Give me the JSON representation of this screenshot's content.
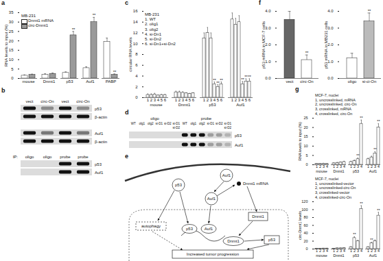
{
  "panel_labels": [
    "a",
    "b",
    "c",
    "d",
    "e",
    "f",
    "g"
  ],
  "chart_data": [
    {
      "type": "bar",
      "title": "MB-231",
      "ylabel": "RNA levels to input (%)",
      "categories": [
        "mouse",
        "Dnmt1",
        "p53",
        "Auf1",
        "PABP"
      ],
      "series": [
        {
          "name": "Dnmt1 mRNA",
          "color": "#ffffff",
          "values": [
            1.5,
            2,
            3,
            5.5,
            19.5
          ],
          "errors": [
            0.4,
            0.5,
            0.5,
            0.7,
            2
          ]
        },
        {
          "name": "circ-Dnmt1",
          "color": "#9a9a9a",
          "values": [
            2,
            2.5,
            23,
            30,
            2
          ],
          "errors": [
            0.3,
            0.4,
            2,
            2.5,
            0.4
          ],
          "significance": [
            null,
            null,
            "**",
            "**",
            "**"
          ]
        }
      ],
      "ylim": [
        0,
        35
      ],
      "yticks": [
        0,
        5,
        10,
        15,
        20,
        25,
        30,
        35
      ],
      "legend": "top-left"
    },
    {
      "type": "bar",
      "title": "MB-231",
      "ylabel": "circular RNA levels",
      "categories": [
        "mouse",
        "Dnmt1",
        "p53",
        "Auf1"
      ],
      "bar_labels": [
        "1",
        "2",
        "3",
        "4",
        "5",
        "6"
      ],
      "series": [
        {
          "name": "1. WT",
          "color": "#ffffff",
          "values": [
            0.5,
            1,
            11,
            14.5
          ],
          "errors": [
            0.2,
            0.2,
            1,
            1.2
          ]
        },
        {
          "name": "2. olig1",
          "color": "#ffffff",
          "values": [
            0.5,
            1,
            12,
            13.5
          ],
          "errors": [
            0.2,
            0.2,
            1,
            1.2
          ]
        },
        {
          "name": "3. olig2",
          "color": "#ffffff",
          "values": [
            0.6,
            0.9,
            11,
            14
          ],
          "errors": [
            0.2,
            0.2,
            1,
            1.2
          ]
        },
        {
          "name": "4. si-Dn1",
          "color": "#ffffff",
          "values": [
            0.4,
            0.8,
            2.5,
            2.5
          ],
          "errors": [
            0.1,
            0.1,
            0.4,
            0.5
          ],
          "significance": [
            null,
            null,
            "**",
            "**"
          ]
        },
        {
          "name": "5. si-Dn2",
          "color": "#ffffff",
          "values": [
            0.5,
            0.7,
            2,
            3
          ],
          "errors": [
            0.1,
            0.1,
            0.4,
            0.5
          ],
          "significance": [
            null,
            null,
            "**",
            "**"
          ]
        },
        {
          "name": "6. si-Dn1+si-Dn2",
          "color": "#ffffff",
          "values": [
            0.5,
            0.8,
            2.5,
            3
          ],
          "errors": [
            0.1,
            0.1,
            0.4,
            0.5
          ],
          "significance": [
            null,
            null,
            "**",
            "**"
          ]
        }
      ],
      "ylim": [
        0,
        16
      ],
      "yticks": [
        0,
        2,
        4,
        6,
        8,
        10,
        12,
        14,
        16
      ],
      "legend": "top-left"
    },
    {
      "type": "bar",
      "ylabel": "p53 mRNA in MCF-7 cells",
      "categories": [
        "vect",
        "circ-On"
      ],
      "values": [
        3.5,
        1.1
      ],
      "errors": [
        0.5,
        0.3
      ],
      "colors": [
        "#666666",
        "#ffffff"
      ],
      "significance": [
        null,
        "**"
      ],
      "ylim": [
        0,
        4
      ],
      "yticks": [
        0,
        1,
        2,
        3,
        4
      ]
    },
    {
      "type": "bar",
      "ylabel": "p53 mRNA in MB231 cells",
      "categories": [
        "oligo",
        "si-ci-On"
      ],
      "values": [
        1.2,
        3.4
      ],
      "errors": [
        0.3,
        0.5
      ],
      "colors": [
        "#ffffff",
        "#bbbbbb"
      ],
      "significance": [
        null,
        "**"
      ],
      "ylim": [
        0,
        4
      ],
      "yticks": [
        0,
        1,
        2,
        3,
        4
      ]
    },
    {
      "type": "bar",
      "title": "MCF-7, nuclei",
      "ylabel": "RNA levels to input (%)",
      "categories": [
        "mouse",
        "Dnmt1",
        "p53",
        "Auf1"
      ],
      "bar_labels": [
        "1",
        "2",
        "3",
        "4"
      ],
      "series": [
        {
          "name": "1, uncrosslinked, mRNA",
          "color": "#ffffff",
          "values": [
            0.5,
            0.8,
            1.5,
            3
          ],
          "errors": [
            0.2,
            0.2,
            0.4,
            0.5
          ]
        },
        {
          "name": "2, uncrosslinked, circ-On",
          "color": "#ffffff",
          "values": [
            0.5,
            1,
            2,
            4
          ],
          "errors": [
            0.2,
            0.3,
            0.5,
            0.6
          ]
        },
        {
          "name": "3, crosslinked, mRNA",
          "color": "#ffffff",
          "values": [
            0.6,
            1.2,
            3,
            6
          ],
          "errors": [
            0.2,
            0.3,
            0.6,
            1
          ],
          "significance": [
            null,
            null,
            "**",
            "**"
          ]
        },
        {
          "name": "4, crosslinked, circ-On",
          "color": "#ffffff",
          "values": [
            0.5,
            1.5,
            22,
            20
          ],
          "errors": [
            0.2,
            0.4,
            2,
            2
          ],
          "significance": [
            null,
            null,
            "**",
            "**"
          ]
        }
      ],
      "ylim": [
        0,
        25
      ],
      "yticks": [
        0,
        5,
        10,
        15,
        20,
        25
      ],
      "legend": "top-left"
    },
    {
      "type": "bar",
      "title": "MCF-7, nuclei",
      "ylabel": "circ-Dnmt1 levels",
      "categories": [
        "mouse",
        "Dnmt1",
        "p53",
        "Auf1"
      ],
      "bar_labels": [
        "1",
        "2",
        "3",
        "4"
      ],
      "series": [
        {
          "name": "1, uncrosslinked-vector",
          "color": "#ffffff",
          "values": [
            1,
            1,
            5,
            5
          ],
          "errors": [
            0.3,
            0.3,
            1,
            1
          ]
        },
        {
          "name": "2, uncrosslinked-circ-On",
          "color": "#ffffff",
          "values": [
            1,
            2,
            28,
            15
          ],
          "errors": [
            0.3,
            0.5,
            3,
            2
          ],
          "significance": [
            null,
            null,
            "**",
            "**"
          ]
        },
        {
          "name": "3, crosslinked-vector",
          "color": "#ffffff",
          "values": [
            1.5,
            2,
            20,
            20
          ],
          "errors": [
            0.3,
            0.5,
            2,
            3
          ]
        },
        {
          "name": "4, crosslinked-circ-On",
          "color": "#ffffff",
          "values": [
            1.5,
            3,
            102,
            85
          ],
          "errors": [
            0.3,
            0.6,
            8,
            8
          ],
          "significance": [
            null,
            null,
            "**",
            "**"
          ]
        }
      ],
      "ylim": [
        0,
        120
      ],
      "yticks": [
        0,
        20,
        40,
        60,
        80,
        100,
        120
      ],
      "legend": "top-left"
    }
  ],
  "blots": [
    {
      "blocks": [
        {
          "lanes": [
            "vect",
            "circ-On",
            "vect",
            "circ-On"
          ],
          "rows": [
            {
              "name": "p53",
              "bands": [
                1,
                0.4,
                1,
                0.4
              ]
            },
            {
              "name": "β-actin",
              "bands": [
                1,
                1,
                1,
                1
              ]
            }
          ]
        },
        {
          "rows": [
            {
              "name": "Auf1",
              "bands": [
                1,
                0.5,
                1,
                0.5
              ]
            },
            {
              "name": "β-actin",
              "bands": [
                1,
                1,
                1,
                1
              ]
            }
          ]
        },
        {
          "header": "IP:",
          "lanes": [
            "oligo",
            "oligo",
            "probe",
            "probe"
          ],
          "rows": [
            {
              "name": "p53",
              "bands": [
                0,
                0,
                1,
                1
              ]
            },
            {
              "name": "Auf1",
              "bands": [
                0,
                0,
                1,
                1
              ]
            }
          ]
        }
      ]
    },
    {
      "groups": [
        {
          "name": "oligo",
          "lanes": [
            [
              "WT"
            ],
            [
              "olg1"
            ],
            [
              "olg2"
            ],
            [
              "si-D1"
            ],
            [
              "si-D2"
            ],
            [
              "si-D1",
              "si-D2"
            ]
          ]
        },
        {
          "name": "probe",
          "lanes": [
            [
              "WT"
            ],
            [
              "olg1"
            ],
            [
              "olg2"
            ],
            [
              "si-D1"
            ],
            [
              "si-D2"
            ],
            [
              "si-D1",
              "si-D2"
            ]
          ]
        }
      ],
      "rows": [
        {
          "name": "p53",
          "bands": [
            0,
            0,
            0,
            0,
            0,
            0,
            1,
            1,
            1,
            0.3,
            0.3,
            0.2
          ]
        },
        {
          "name": "Auf1",
          "bands": [
            0,
            0,
            0,
            0,
            0,
            0,
            1,
            1,
            1,
            0.3,
            0.3,
            0.2
          ]
        }
      ]
    }
  ],
  "diagram": {
    "nodes": [
      "p53",
      "Auf1",
      "Dnmt1 mRNA",
      "Auf1",
      "p53",
      "Auf1",
      "autophagy",
      "Dnmt1",
      "Dnmt1",
      "p53",
      "Increased tumor progression"
    ]
  }
}
